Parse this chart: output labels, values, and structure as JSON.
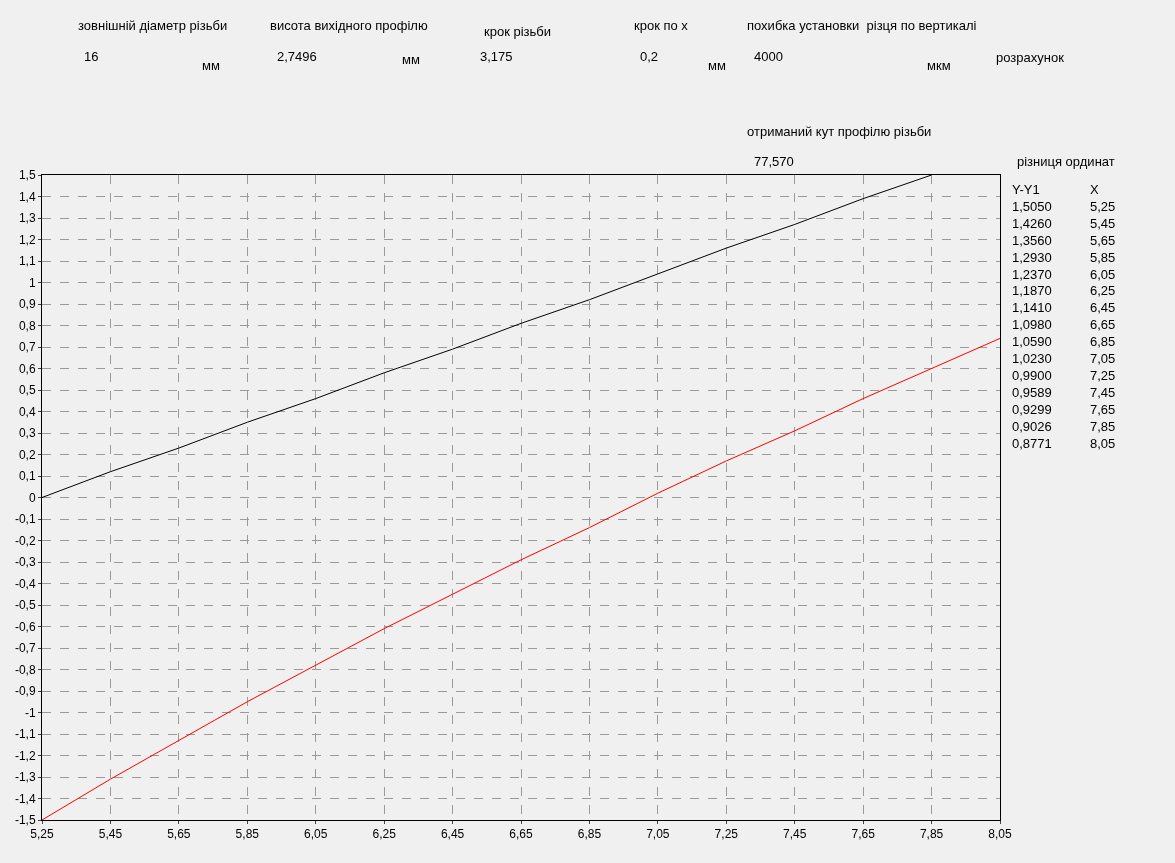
{
  "chart_data": {
    "type": "line",
    "x": [
      5.25,
      5.45,
      5.65,
      5.85,
      6.05,
      6.25,
      6.45,
      6.65,
      6.85,
      7.05,
      7.25,
      7.45,
      7.65,
      7.85,
      8.05
    ],
    "series": [
      {
        "color": "#000000",
        "values": [
          0,
          0.12,
          0.23,
          0.35,
          0.46,
          0.58,
          0.69,
          0.81,
          0.92,
          1.04,
          1.16,
          1.27,
          1.39,
          1.5,
          null
        ]
      },
      {
        "color": "#ff0000",
        "values": [
          -1.5,
          -1.31,
          -1.13,
          -0.95,
          -0.78,
          -0.61,
          -0.45,
          -0.29,
          -0.14,
          0.02,
          0.17,
          0.31,
          0.46,
          0.6,
          0.74
        ]
      }
    ],
    "xlim": [
      5.25,
      8.05
    ],
    "xticks": [
      {
        "value": 5.25,
        "label": "5,25"
      },
      {
        "value": 5.45,
        "label": "5,45"
      },
      {
        "value": 5.65,
        "label": "5,65"
      },
      {
        "value": 5.85,
        "label": "5,85"
      },
      {
        "value": 6.05,
        "label": "6,05"
      },
      {
        "value": 6.25,
        "label": "6,25"
      },
      {
        "value": 6.45,
        "label": "6,45"
      },
      {
        "value": 6.65,
        "label": "6,65"
      },
      {
        "value": 6.85,
        "label": "6,85"
      },
      {
        "value": 7.05,
        "label": "7,05"
      },
      {
        "value": 7.25,
        "label": "7,25"
      },
      {
        "value": 7.45,
        "label": "7,45"
      },
      {
        "value": 7.65,
        "label": "7,65"
      },
      {
        "value": 7.85,
        "label": "7,85"
      },
      {
        "value": 8.05,
        "label": "8,05"
      }
    ],
    "ylim": [
      -1.5,
      1.5
    ],
    "yticks": [
      {
        "value": -1.5,
        "label": "-1,5"
      },
      {
        "value": -1.4,
        "label": "-1,4"
      },
      {
        "value": -1.3,
        "label": "-1,3"
      },
      {
        "value": -1.2,
        "label": "-1,2"
      },
      {
        "value": -1.1,
        "label": "-1,1"
      },
      -1,
      {
        "value": -0.9,
        "label": "-0,9"
      },
      {
        "value": -0.8,
        "label": "-0,8"
      },
      {
        "value": -0.7,
        "label": "-0,7"
      },
      {
        "value": -0.6,
        "label": "-0,6"
      },
      {
        "value": -0.5,
        "label": "-0,5"
      },
      {
        "value": -0.4,
        "label": "-0,4"
      },
      {
        "value": -0.3,
        "label": "-0,3"
      },
      {
        "value": -0.2,
        "label": "-0,2"
      },
      {
        "value": -0.1,
        "label": "-0,1"
      },
      0,
      {
        "value": 0.1,
        "label": "0,1"
      },
      {
        "value": 0.2,
        "label": "0,2"
      },
      {
        "value": 0.3,
        "label": "0,3"
      },
      {
        "value": 0.4,
        "label": "0,4"
      },
      {
        "value": 0.5,
        "label": "0,5"
      },
      {
        "value": 0.6,
        "label": "0,6"
      },
      {
        "value": 0.7,
        "label": "0,7"
      },
      {
        "value": 0.8,
        "label": "0,8"
      },
      {
        "value": 0.9,
        "label": "0,9"
      },
      1,
      {
        "value": 1.1,
        "label": "1,1"
      },
      {
        "value": 1.2,
        "label": "1,2"
      },
      {
        "value": 1.3,
        "label": "1,3"
      },
      {
        "value": 1.4,
        "label": "1,4"
      },
      {
        "value": 1.5,
        "label": "1,5"
      }
    ],
    "grid": true,
    "line_style": "solid",
    "marker": "none",
    "annotations": [
      "зовнішній діаметр різьби",
      "16",
      "мм",
      "висота вихідного профілю",
      "2,7496",
      "мм",
      "крок різьби",
      "3,175",
      "крок по x",
      "0,2",
      "мм",
      "похибка установки  різця по вертикалі",
      "4000",
      "мкм",
      "розрахунок",
      "отриманий кут профілю різьби",
      "77,570",
      "різниця ординат",
      "Y-Y1\n1,5050\n1,4260\n1,3560\n1,2930\n1,2370\n1,1870\n1,1410\n1,0980\n1,0590\n1,0230\n0,9900\n0,9589\n0,9299\n0,9026\n0,8771",
      "X\n5,25\n5,45\n5,65\n5,85\n6,05\n6,25\n6,45\n6,65\n6,85\n7,05\n7,25\n7,45\n7,65\n7,85\n8,05"
    ]
  }
}
